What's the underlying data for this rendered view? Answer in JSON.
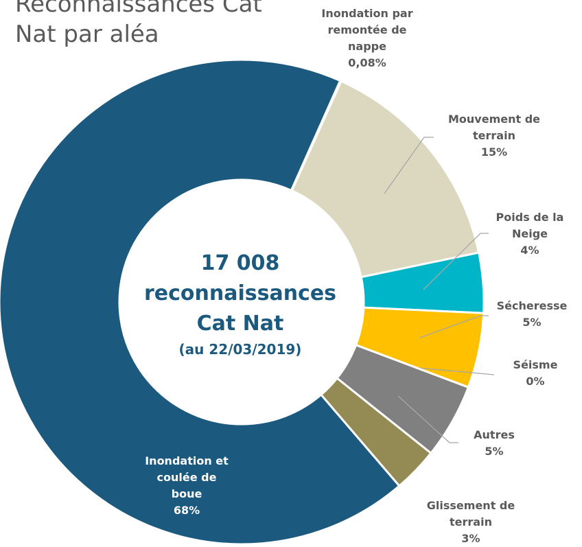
{
  "chart_data": {
    "type": "donut",
    "title": "Reconnaissances Cat Nat par aléa",
    "center_text": "17 008 reconnaissances Cat Nat",
    "center_subtext": "(au 22/03/2019)",
    "categories": [
      "Inondation par remontée de nappe",
      "Mouvement de terrain",
      "Poids de la Neige",
      "Sécheresse",
      "Séisme",
      "Autres",
      "Glissement de terrain",
      "Inondation et coulée de boue"
    ],
    "values": [
      0.08,
      15,
      4,
      5,
      0,
      5,
      3,
      68
    ],
    "value_labels": [
      "0,08%",
      "15%",
      "4%",
      "5%",
      "0%",
      "5%",
      "3%",
      "68%"
    ],
    "colors": [
      "#c9d6e3",
      "#dcd8c0",
      "#00b5c8",
      "#ffc000",
      "#a6a6a6",
      "#808080",
      "#948a54",
      "#1b5a7e"
    ]
  }
}
